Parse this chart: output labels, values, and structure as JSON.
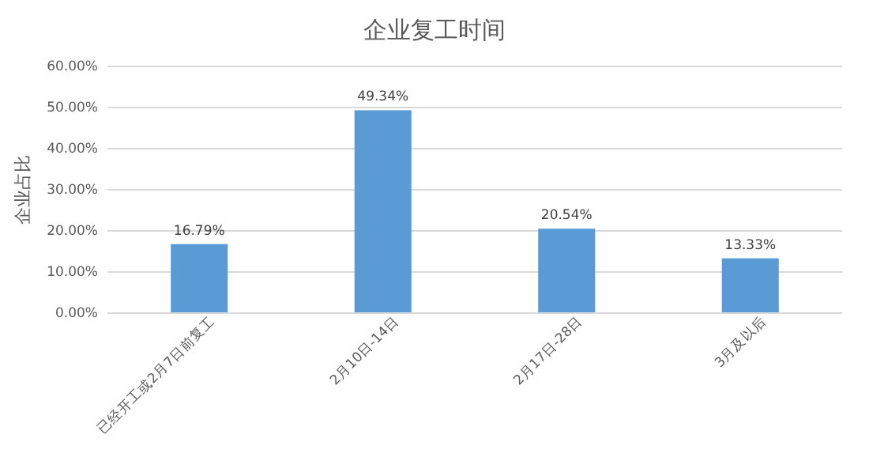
{
  "chart_data": {
    "type": "bar",
    "title": "企业复工时间",
    "ylabel": "企业占比",
    "categories": [
      "已经开工或2月7日前复工",
      "2月10日-14日",
      "2月17日-28日",
      "3月及以后"
    ],
    "values": [
      16.79,
      49.34,
      20.54,
      13.33
    ],
    "value_labels": [
      "16.79%",
      "49.34%",
      "20.54%",
      "13.33%"
    ],
    "color": "#5b9bd5",
    "ylim": [
      0,
      60
    ],
    "yticks": [
      {
        "value": 0,
        "label": "0.00%"
      },
      {
        "value": 10,
        "label": "10.00%"
      },
      {
        "value": 20,
        "label": "20.00%"
      },
      {
        "value": 30,
        "label": "30.00%"
      },
      {
        "value": 40,
        "label": "40.00%"
      },
      {
        "value": 50,
        "label": "50.00%"
      },
      {
        "value": 60,
        "label": "60.00%"
      }
    ],
    "grid": "y"
  }
}
